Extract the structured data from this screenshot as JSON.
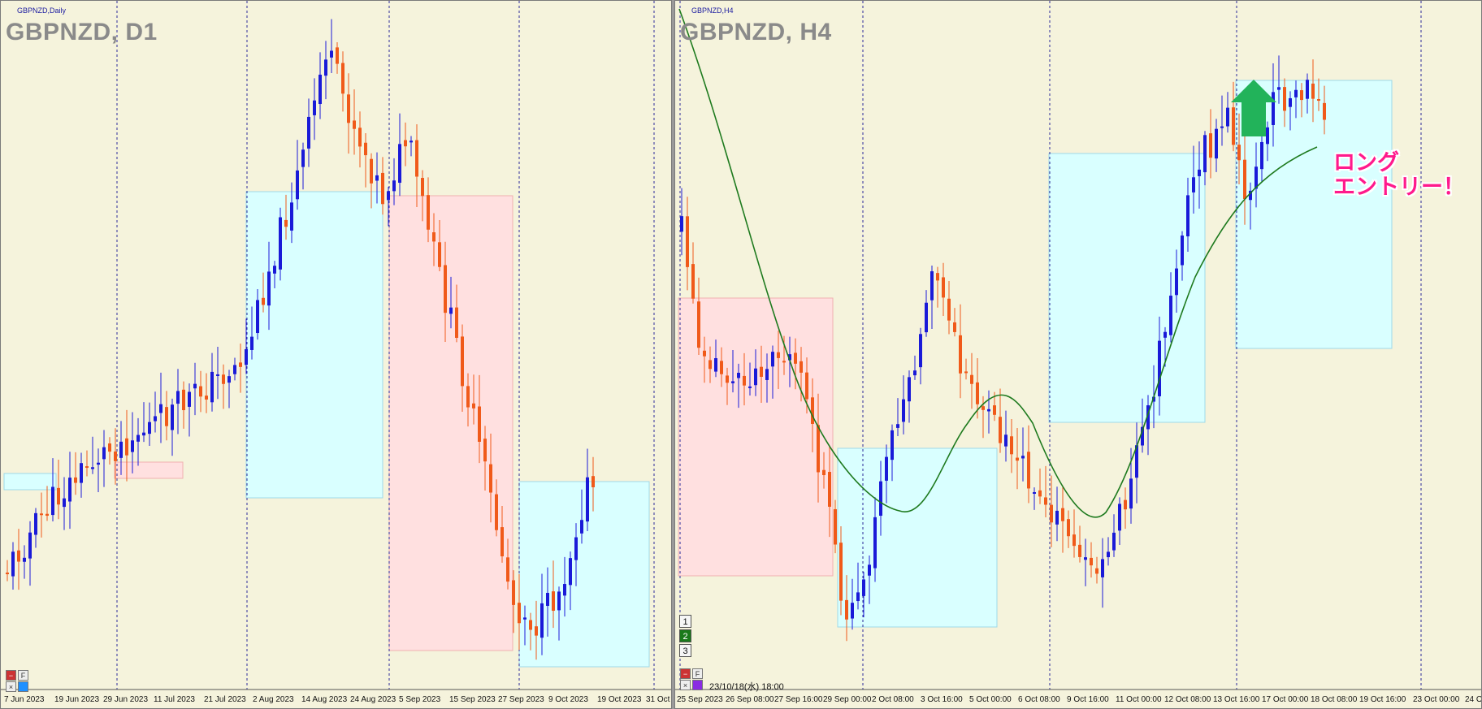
{
  "chart_data": [
    {
      "type": "candlestick",
      "window_label": "GBPNZD,Daily",
      "title": "GBPNZD, D1",
      "x_labels": [
        "7 Jun 2023",
        "19 Jun 2023",
        "29 Jun 2023",
        "11 Jul 2023",
        "21 Jul 2023",
        "2 Aug 2023",
        "14 Aug 2023",
        "24 Aug 2023",
        "5 Sep 2023",
        "15 Sep 2023",
        "27 Sep 2023",
        "9 Oct 2023",
        "19 Oct 2023",
        "31 Oct"
      ],
      "colors": {
        "bull": "#1a1ad8",
        "bear": "#f05a1a",
        "rect_blue": "#d9ffff",
        "rect_pink": "#ffe0e0"
      }
    },
    {
      "type": "candlestick",
      "window_label": "GBPNZD,H4",
      "title": "GBPNZD, H4",
      "x_labels": [
        "25 Sep 2023",
        "26 Sep 08:00",
        "27 Sep 16:00",
        "29 Sep 00:00",
        "2 Oct 08:00",
        "3 Oct 16:00",
        "5 Oct 00:00",
        "6 Oct 08:00",
        "9 Oct 16:00",
        "11 Oct 00:00",
        "12 Oct 08:00",
        "13 Oct 16:00",
        "17 Oct 00:00",
        "18 Oct 08:00",
        "19 Oct 16:00",
        "23 Oct 00:00",
        "24 O"
      ],
      "timestamp": "23/10/18(水) 18:00",
      "annotation": [
        "ロング",
        "エントリー！"
      ],
      "colors": {
        "bull": "#1a1ad8",
        "bear": "#f05a1a",
        "ma": "#1e7a1e",
        "arrow": "#22b35a",
        "rect_blue": "#d9ffff",
        "rect_pink": "#ffe0e0"
      }
    }
  ],
  "controls": {
    "panel_buttons": [
      "F"
    ],
    "timeframe_buttons": [
      "1",
      "2",
      "3"
    ]
  }
}
